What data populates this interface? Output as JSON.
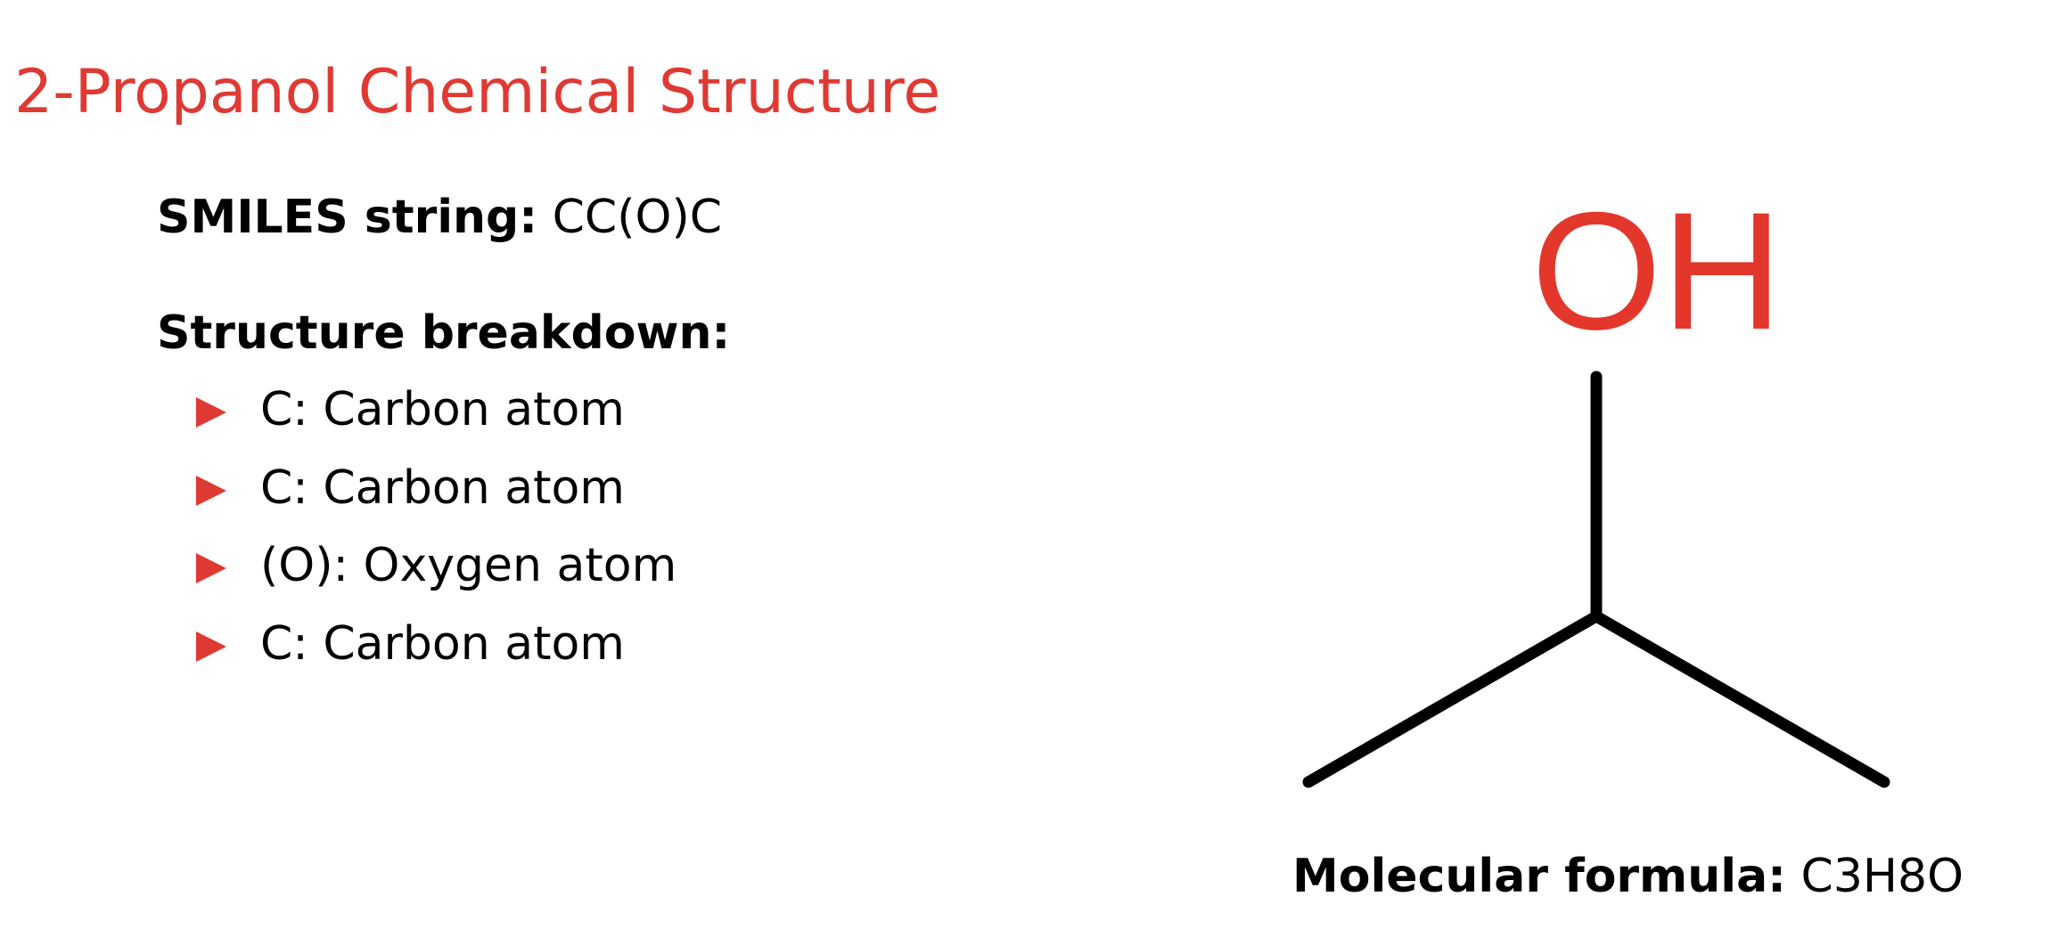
{
  "title": "2-Propanol Chemical Structure",
  "smiles": {
    "label": "SMILES string:",
    "value": "CC(O)C"
  },
  "breakdown": {
    "heading": "Structure breakdown:",
    "items": [
      "C: Carbon atom",
      "C: Carbon atom",
      "(O): Oxygen atom",
      "C: Carbon atom"
    ]
  },
  "structure": {
    "oh_label": "OH"
  },
  "formula": {
    "label": "Molecular formula:",
    "value": "C3H8O"
  },
  "colors": {
    "accent": "#de3a33",
    "oxygen": "#e3372c",
    "bond": "#000000"
  }
}
